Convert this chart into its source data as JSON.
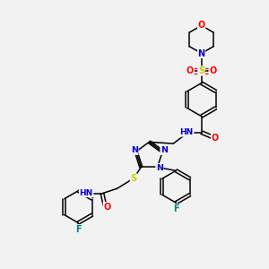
{
  "bg_color": "#f2f2f2",
  "atom_colors": {
    "C": "#000000",
    "N": "#0000cc",
    "O": "#ff0000",
    "S": "#cccc00",
    "F": "#008080",
    "H": "#555555"
  },
  "figsize": [
    3.0,
    3.0
  ],
  "dpi": 100
}
